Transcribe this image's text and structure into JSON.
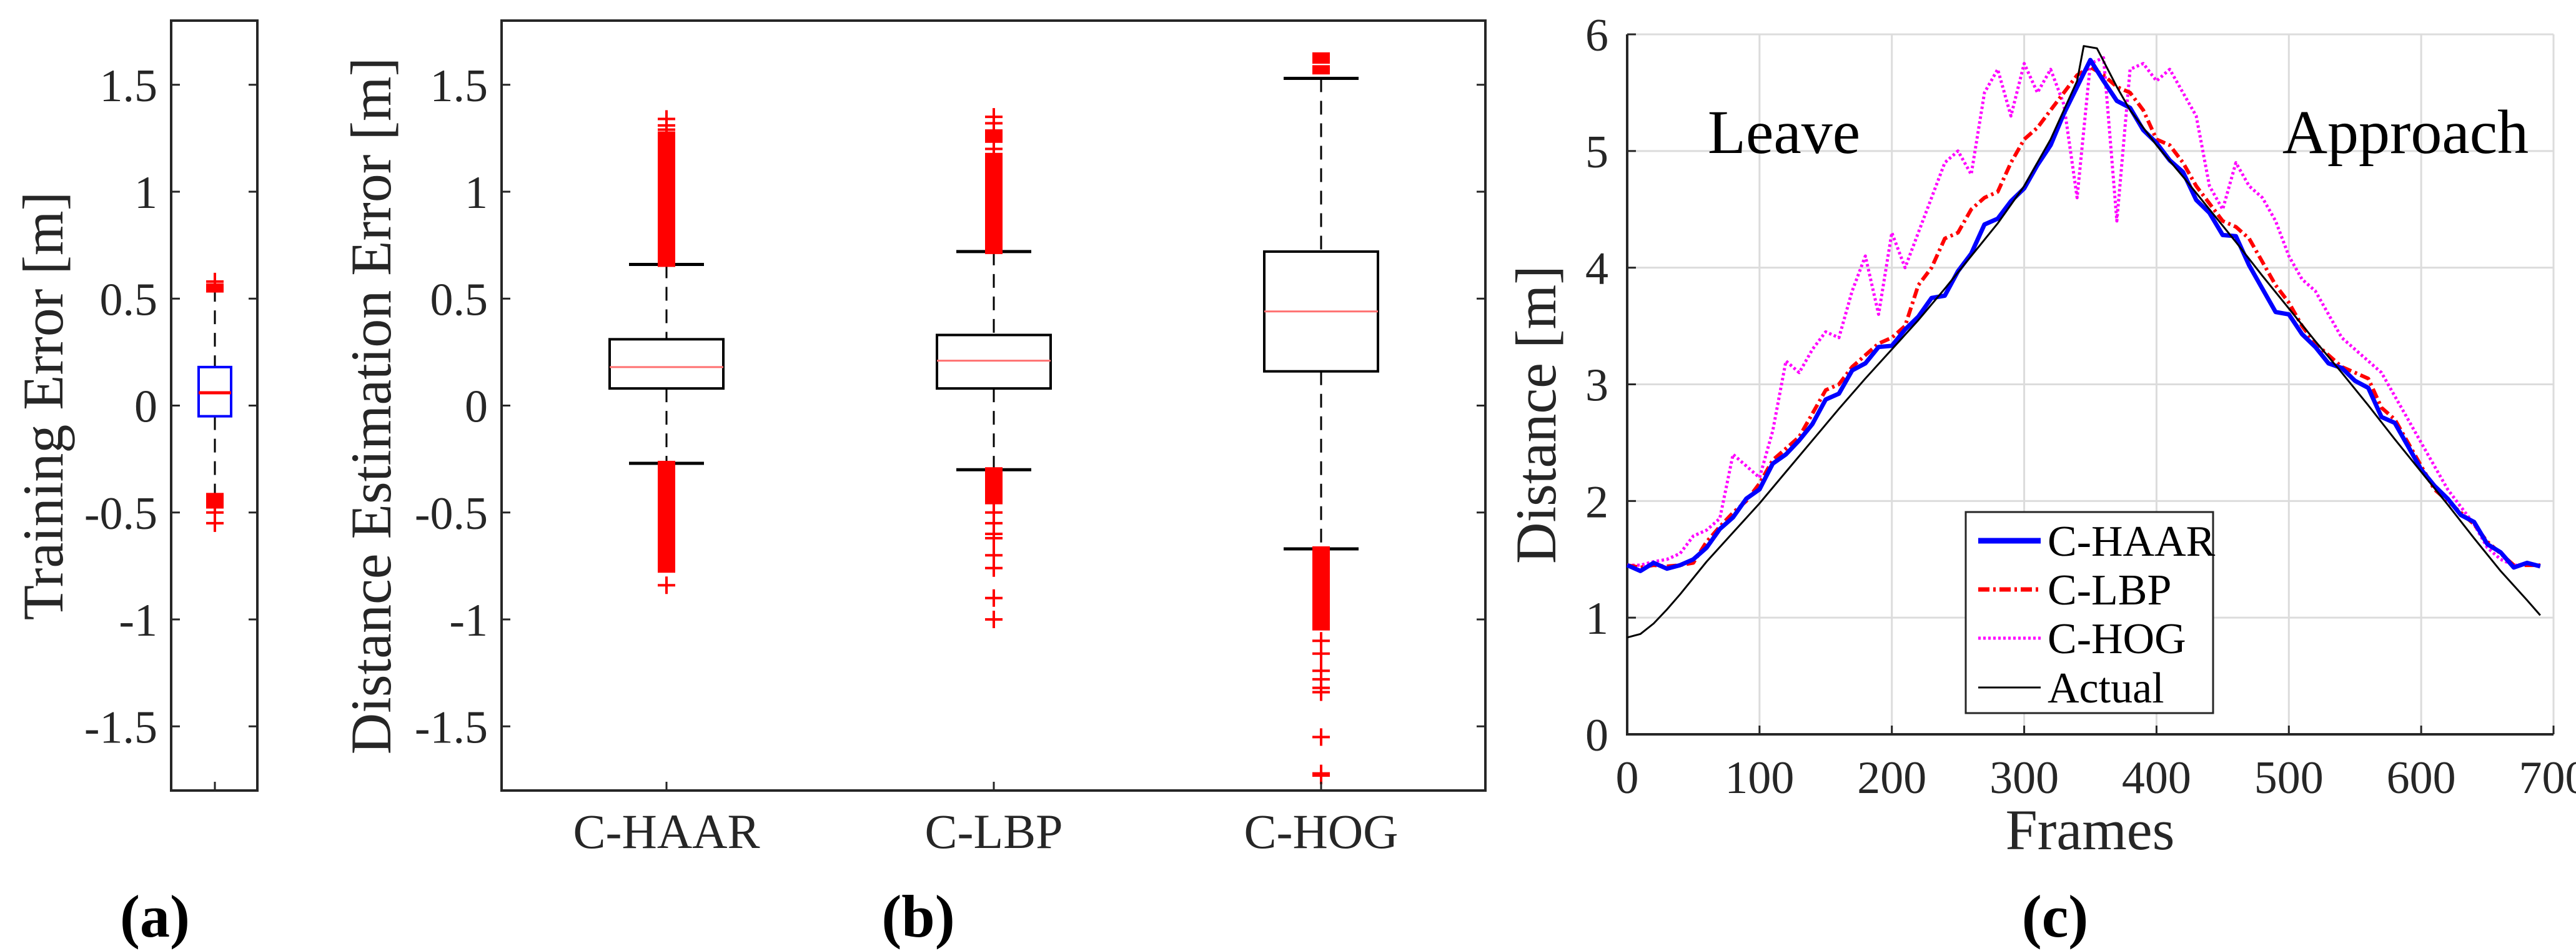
{
  "panels": {
    "a": "(a)",
    "b": "(b)",
    "c": "(c)"
  },
  "chart_data": [
    {
      "type": "box",
      "panel": "a",
      "ylabel": "Training Error [m]",
      "ylim": [
        -1.8,
        1.8
      ],
      "yticks": [
        -1.5,
        -1,
        -0.5,
        0,
        0.5,
        1,
        1.5
      ],
      "ytick_labels": [
        "-1.5",
        "-1",
        "-0.5",
        "0",
        "0.5",
        "1",
        "1.5"
      ],
      "box_color": "#0000ff",
      "median_color": "#ff0000",
      "boxes": [
        {
          "name": "",
          "q1": -0.05,
          "median": 0.06,
          "q3": 0.18,
          "whisker_low": -0.42,
          "whisker_high": 0.55,
          "outliers_dense": [
            [
              0.54,
              0.56
            ],
            [
              -0.47,
              -0.42
            ]
          ],
          "outliers": [
            0.58,
            -0.5,
            -0.55
          ]
        }
      ]
    },
    {
      "type": "box",
      "panel": "b",
      "ylabel": "Distance Estimation Error [m]",
      "ylim": [
        -1.8,
        1.8
      ],
      "yticks": [
        -1.5,
        -1,
        -0.5,
        0,
        0.5,
        1,
        1.5
      ],
      "ytick_labels": [
        "-1.5",
        "-1",
        "-0.5",
        "0",
        "0.5",
        "1",
        "1.5"
      ],
      "box_color": "#000000",
      "median_color": "#ff7070",
      "categories": [
        "C-HAAR",
        "C-LBP",
        "C-HOG"
      ],
      "boxes": [
        {
          "name": "C-HAAR",
          "q1": 0.08,
          "median": 0.18,
          "q3": 0.31,
          "whisker_low": -0.27,
          "whisker_high": 0.66,
          "outliers_dense": [
            [
              0.66,
              1.27
            ],
            [
              -0.77,
              -0.27
            ]
          ],
          "outliers": [
            1.29,
            1.31,
            1.34,
            -0.84
          ]
        },
        {
          "name": "C-LBP",
          "q1": 0.08,
          "median": 0.21,
          "q3": 0.33,
          "whisker_low": -0.3,
          "whisker_high": 0.72,
          "outliers_dense": [
            [
              0.72,
              1.17
            ],
            [
              1.24,
              1.28
            ],
            [
              -0.45,
              -0.3
            ]
          ],
          "outliers": [
            1.2,
            1.32,
            1.35,
            -0.5,
            -0.55,
            -0.6,
            -0.62,
            -0.7,
            -0.76,
            -0.9,
            -1.0
          ]
        },
        {
          "name": "C-HOG",
          "q1": 0.16,
          "median": 0.44,
          "q3": 0.72,
          "whisker_low": -0.67,
          "whisker_high": 1.53,
          "outliers_dense": [
            [
              1.56,
              1.58
            ],
            [
              1.61,
              1.64
            ],
            [
              -1.04,
              -0.67
            ]
          ],
          "outliers": [
            -1.1,
            -1.16,
            -1.24,
            -1.28,
            -1.32,
            -1.34,
            -1.55,
            -1.72,
            -1.73
          ]
        }
      ]
    },
    {
      "type": "line",
      "panel": "c",
      "xlabel": "Frames",
      "ylabel": "Distance [m]",
      "xlim": [
        0,
        700
      ],
      "ylim": [
        0,
        6
      ],
      "xticks": [
        0,
        100,
        200,
        300,
        400,
        500,
        600,
        700
      ],
      "xtick_labels": [
        "0",
        "100",
        "200",
        "300",
        "400",
        "500",
        "600",
        "700"
      ],
      "yticks": [
        0,
        1,
        2,
        3,
        4,
        5,
        6
      ],
      "ytick_labels": [
        "0",
        "1",
        "2",
        "3",
        "4",
        "5",
        "6"
      ],
      "grid": true,
      "annotations": [
        "Leave",
        "Approach"
      ],
      "legend_position": "bottom-center",
      "series": [
        {
          "name": "C-HAAR",
          "color": "#0000ff",
          "style": "solid-thick",
          "x": [
            0,
            10,
            20,
            30,
            40,
            50,
            60,
            70,
            80,
            90,
            100,
            110,
            120,
            130,
            140,
            150,
            160,
            170,
            180,
            190,
            200,
            210,
            220,
            230,
            240,
            250,
            260,
            270,
            280,
            290,
            300,
            310,
            320,
            330,
            340,
            350,
            360,
            370,
            380,
            390,
            400,
            410,
            420,
            430,
            440,
            450,
            460,
            470,
            480,
            490,
            500,
            510,
            520,
            530,
            540,
            550,
            560,
            570,
            580,
            590,
            600,
            610,
            620,
            630,
            640,
            650,
            660,
            670,
            680,
            690
          ],
          "y": [
            1.45,
            1.4,
            1.47,
            1.42,
            1.45,
            1.5,
            1.6,
            1.76,
            1.86,
            2.02,
            2.1,
            2.32,
            2.4,
            2.52,
            2.66,
            2.87,
            2.92,
            3.12,
            3.18,
            3.32,
            3.33,
            3.47,
            3.58,
            3.74,
            3.76,
            3.97,
            4.12,
            4.37,
            4.42,
            4.57,
            4.68,
            4.88,
            5.05,
            5.32,
            5.55,
            5.78,
            5.6,
            5.43,
            5.37,
            5.18,
            5.07,
            4.92,
            4.82,
            4.58,
            4.47,
            4.28,
            4.27,
            4.02,
            3.82,
            3.62,
            3.6,
            3.43,
            3.32,
            3.18,
            3.14,
            3.03,
            2.97,
            2.72,
            2.67,
            2.47,
            2.27,
            2.13,
            2.02,
            1.88,
            1.82,
            1.63,
            1.56,
            1.43,
            1.47,
            1.44
          ]
        },
        {
          "name": "C-LBP",
          "color": "#ff0000",
          "style": "dashdot",
          "x": [
            0,
            10,
            20,
            30,
            40,
            50,
            60,
            70,
            80,
            90,
            100,
            110,
            120,
            130,
            140,
            150,
            160,
            170,
            180,
            190,
            200,
            210,
            220,
            230,
            240,
            250,
            260,
            270,
            280,
            290,
            300,
            310,
            320,
            330,
            340,
            350,
            360,
            370,
            380,
            390,
            400,
            410,
            420,
            430,
            440,
            450,
            460,
            470,
            480,
            490,
            500,
            510,
            520,
            530,
            540,
            550,
            560,
            570,
            580,
            590,
            600,
            610,
            620,
            630,
            640,
            650,
            660,
            670,
            680,
            690
          ],
          "y": [
            1.45,
            1.43,
            1.45,
            1.44,
            1.45,
            1.47,
            1.65,
            1.78,
            1.9,
            2.0,
            2.15,
            2.35,
            2.45,
            2.55,
            2.75,
            2.95,
            3.0,
            3.15,
            3.25,
            3.35,
            3.4,
            3.5,
            3.85,
            4.0,
            4.25,
            4.3,
            4.5,
            4.6,
            4.65,
            4.9,
            5.1,
            5.2,
            5.35,
            5.5,
            5.65,
            5.72,
            5.65,
            5.55,
            5.5,
            5.35,
            5.1,
            5.05,
            4.9,
            4.7,
            4.55,
            4.4,
            4.35,
            4.25,
            4.05,
            3.85,
            3.7,
            3.5,
            3.35,
            3.25,
            3.15,
            3.1,
            3.05,
            2.8,
            2.7,
            2.5,
            2.3,
            2.1,
            2.0,
            1.9,
            1.8,
            1.65,
            1.55,
            1.45,
            1.45,
            1.45
          ]
        },
        {
          "name": "C-HOG",
          "color": "#ff00ff",
          "style": "dotted",
          "x": [
            0,
            10,
            20,
            30,
            40,
            50,
            60,
            70,
            80,
            90,
            100,
            110,
            120,
            130,
            140,
            150,
            160,
            170,
            180,
            190,
            200,
            210,
            220,
            230,
            240,
            250,
            260,
            270,
            280,
            290,
            300,
            310,
            320,
            330,
            340,
            350,
            360,
            370,
            380,
            390,
            400,
            410,
            420,
            430,
            440,
            450,
            460,
            470,
            480,
            490,
            500,
            510,
            520,
            530,
            540,
            550,
            560,
            570,
            580,
            590,
            600,
            610,
            620,
            630,
            640,
            650,
            660,
            670,
            680,
            690
          ],
          "y": [
            1.45,
            1.45,
            1.48,
            1.5,
            1.55,
            1.7,
            1.75,
            1.85,
            2.4,
            2.3,
            2.2,
            2.6,
            3.2,
            3.1,
            3.3,
            3.45,
            3.4,
            3.8,
            4.1,
            3.6,
            4.3,
            4.0,
            4.3,
            4.6,
            4.9,
            5.0,
            4.8,
            5.5,
            5.7,
            5.3,
            5.75,
            5.5,
            5.7,
            5.4,
            4.6,
            5.75,
            5.8,
            4.4,
            5.7,
            5.75,
            5.6,
            5.7,
            5.5,
            5.3,
            4.7,
            4.5,
            4.9,
            4.7,
            4.6,
            4.4,
            4.1,
            3.9,
            3.8,
            3.6,
            3.4,
            3.3,
            3.2,
            3.1,
            2.9,
            2.7,
            2.5,
            2.3,
            2.1,
            1.95,
            1.8,
            1.6,
            1.5,
            1.45,
            1.45,
            1.45
          ]
        },
        {
          "name": "Actual",
          "color": "#000000",
          "style": "solid-thin",
          "x": [
            0,
            10,
            20,
            30,
            40,
            60,
            80,
            100,
            120,
            140,
            160,
            180,
            200,
            220,
            240,
            260,
            280,
            300,
            320,
            340,
            345,
            355,
            370,
            380,
            400,
            420,
            440,
            460,
            480,
            500,
            520,
            540,
            560,
            580,
            600,
            620,
            640,
            660,
            680,
            690
          ],
          "y": [
            0.83,
            0.86,
            0.95,
            1.07,
            1.2,
            1.48,
            1.73,
            1.98,
            2.25,
            2.52,
            2.79,
            3.05,
            3.3,
            3.55,
            3.82,
            4.1,
            4.38,
            4.7,
            5.1,
            5.6,
            5.9,
            5.88,
            5.55,
            5.35,
            5.05,
            4.78,
            4.5,
            4.22,
            3.93,
            3.65,
            3.37,
            3.1,
            2.82,
            2.53,
            2.25,
            1.97,
            1.68,
            1.4,
            1.15,
            1.02
          ]
        }
      ]
    }
  ]
}
